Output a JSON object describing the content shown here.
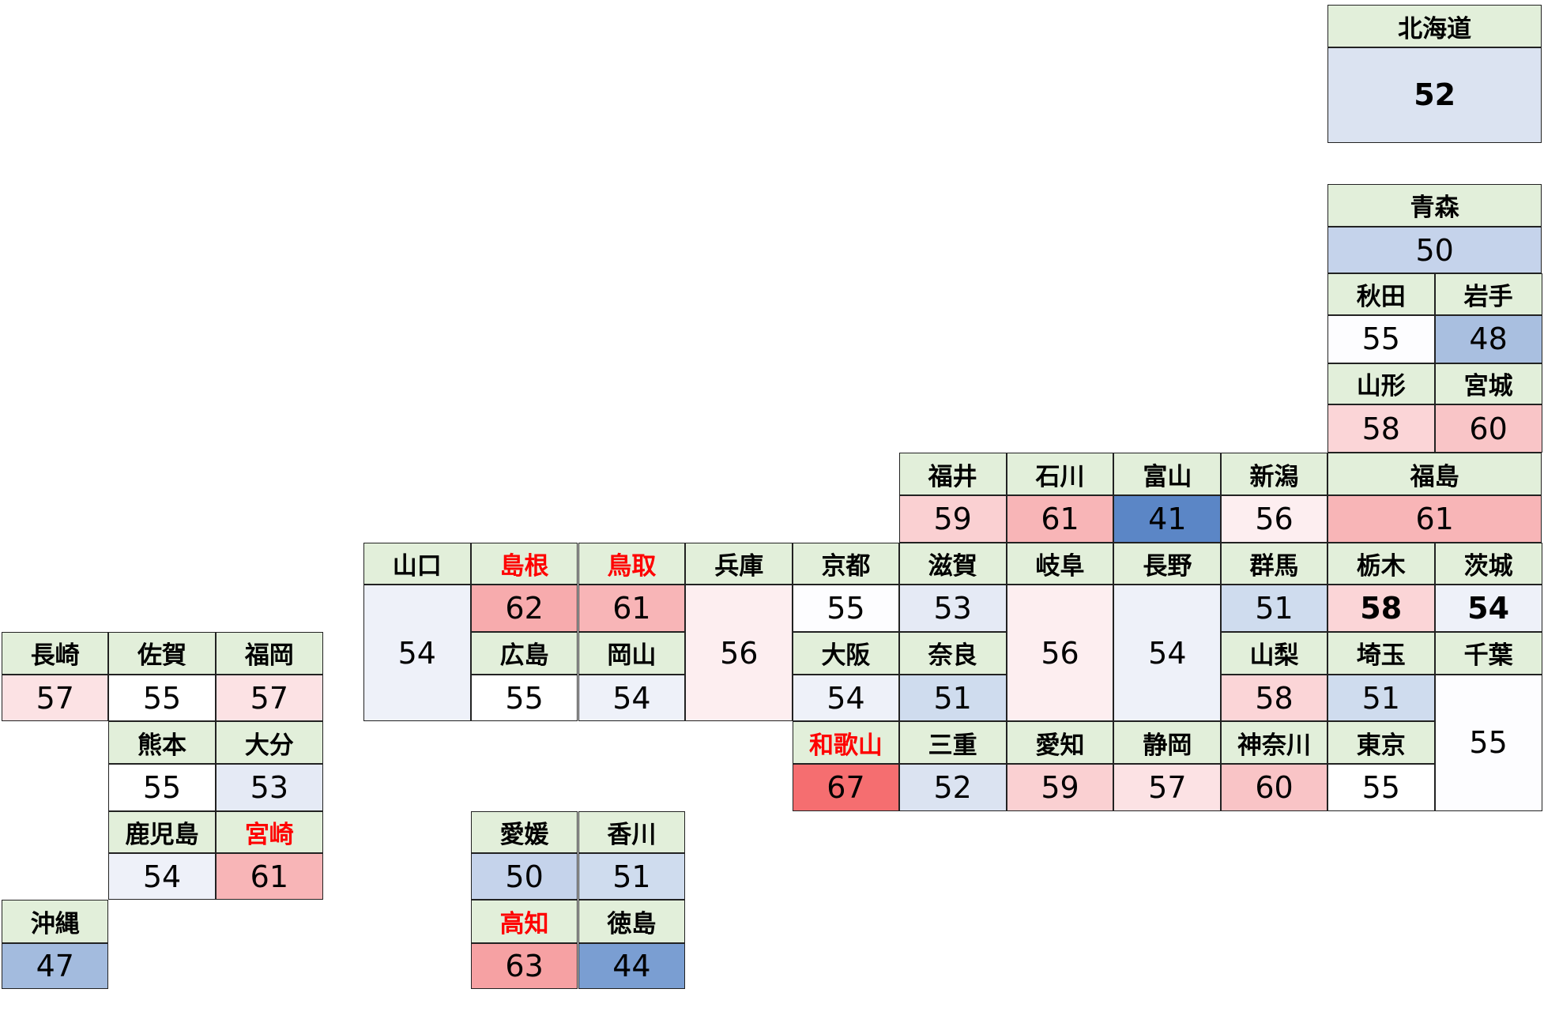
{
  "prefectures": [
    {
      "name": "北海道",
      "value": 52,
      "color": "#dbe3f1",
      "name_color": "#000000",
      "value_weight": "bold"
    },
    {
      "name": "青森",
      "value": 50,
      "color": "#c5d3eb",
      "name_color": "#000000"
    },
    {
      "name": "岩手",
      "value": 48,
      "color": "#a9bfe0",
      "name_color": "#000000"
    },
    {
      "name": "宮城",
      "value": 60,
      "color": "#f9c5c7",
      "name_color": "#000000"
    },
    {
      "name": "秋田",
      "value": 55,
      "color": "#fdfdff",
      "name_color": "#000000"
    },
    {
      "name": "山形",
      "value": 58,
      "color": "#fbd5d7",
      "name_color": "#000000"
    },
    {
      "name": "福島",
      "value": 61,
      "color": "#f8b5b7",
      "name_color": "#000000"
    },
    {
      "name": "茨城",
      "value": 54,
      "color": "#eef1f9",
      "name_color": "#000000",
      "value_weight": "bold"
    },
    {
      "name": "栃木",
      "value": 58,
      "color": "#fbd5d7",
      "name_color": "#000000",
      "value_weight": "bold"
    },
    {
      "name": "群馬",
      "value": 51,
      "color": "#cfdcee",
      "name_color": "#000000"
    },
    {
      "name": "埼玉",
      "value": 51,
      "color": "#cfdcee",
      "name_color": "#000000"
    },
    {
      "name": "千葉",
      "value": 55,
      "color": "#fdfdff",
      "name_color": "#000000"
    },
    {
      "name": "東京",
      "value": 55,
      "color": "#ffffff",
      "name_color": "#000000"
    },
    {
      "name": "神奈川",
      "value": 60,
      "color": "#f9c4c6",
      "name_color": "#000000"
    },
    {
      "name": "新潟",
      "value": 56,
      "color": "#fdeef0",
      "name_color": "#000000"
    },
    {
      "name": "富山",
      "value": 41,
      "color": "#5b86c6",
      "name_color": "#000000"
    },
    {
      "name": "石川",
      "value": 61,
      "color": "#f8b5b7",
      "name_color": "#000000"
    },
    {
      "name": "福井",
      "value": 59,
      "color": "#fad0d2",
      "name_color": "#000000"
    },
    {
      "name": "山梨",
      "value": 58,
      "color": "#fbd5d7",
      "name_color": "#000000"
    },
    {
      "name": "長野",
      "value": 54,
      "color": "#eef1f9",
      "name_color": "#000000"
    },
    {
      "name": "岐阜",
      "value": 56,
      "color": "#fdeef0",
      "name_color": "#000000"
    },
    {
      "name": "静岡",
      "value": 57,
      "color": "#fce2e4",
      "name_color": "#000000"
    },
    {
      "name": "愛知",
      "value": 59,
      "color": "#fad0d2",
      "name_color": "#000000"
    },
    {
      "name": "三重",
      "value": 52,
      "color": "#dbe3f1",
      "name_color": "#000000"
    },
    {
      "name": "滋賀",
      "value": 53,
      "color": "#e5eaf5",
      "name_color": "#000000"
    },
    {
      "name": "京都",
      "value": 55,
      "color": "#fdfdff",
      "name_color": "#000000"
    },
    {
      "name": "大阪",
      "value": 54,
      "color": "#eef1f9",
      "name_color": "#000000"
    },
    {
      "name": "兵庫",
      "value": 56,
      "color": "#fdeef0",
      "name_color": "#000000"
    },
    {
      "name": "奈良",
      "value": 51,
      "color": "#cfdcee",
      "name_color": "#000000"
    },
    {
      "name": "和歌山",
      "value": 67,
      "color": "#f56e70",
      "name_color": "#ff0000"
    },
    {
      "name": "鳥取",
      "value": 61,
      "color": "#f8b5b7",
      "name_color": "#ff0000"
    },
    {
      "name": "島根",
      "value": 62,
      "color": "#f7abad",
      "name_color": "#ff0000"
    },
    {
      "name": "岡山",
      "value": 54,
      "color": "#eef1f9",
      "name_color": "#000000"
    },
    {
      "name": "広島",
      "value": 55,
      "color": "#ffffff",
      "name_color": "#000000"
    },
    {
      "name": "山口",
      "value": 54,
      "color": "#eef1f9",
      "name_color": "#000000"
    },
    {
      "name": "徳島",
      "value": 44,
      "color": "#7a9ed2",
      "name_color": "#000000"
    },
    {
      "name": "香川",
      "value": 51,
      "color": "#cfdcee",
      "name_color": "#000000"
    },
    {
      "name": "愛媛",
      "value": 50,
      "color": "#c5d3eb",
      "name_color": "#000000"
    },
    {
      "name": "高知",
      "value": 63,
      "color": "#f6a1a3",
      "name_color": "#ff0000"
    },
    {
      "name": "福岡",
      "value": 57,
      "color": "#fce2e4",
      "name_color": "#000000"
    },
    {
      "name": "佐賀",
      "value": 55,
      "color": "#ffffff",
      "name_color": "#000000"
    },
    {
      "name": "長崎",
      "value": 57,
      "color": "#fce2e4",
      "name_color": "#000000"
    },
    {
      "name": "熊本",
      "value": 55,
      "color": "#ffffff",
      "name_color": "#000000"
    },
    {
      "name": "大分",
      "value": 53,
      "color": "#e5eaf5",
      "name_color": "#000000"
    },
    {
      "name": "宮崎",
      "value": 61,
      "color": "#f8b5b7",
      "name_color": "#ff0000"
    },
    {
      "name": "鹿児島",
      "value": 54,
      "color": "#eef1f9",
      "name_color": "#000000"
    },
    {
      "name": "沖縄",
      "value": 47,
      "color": "#a3bbde",
      "name_color": "#000000"
    }
  ]
}
